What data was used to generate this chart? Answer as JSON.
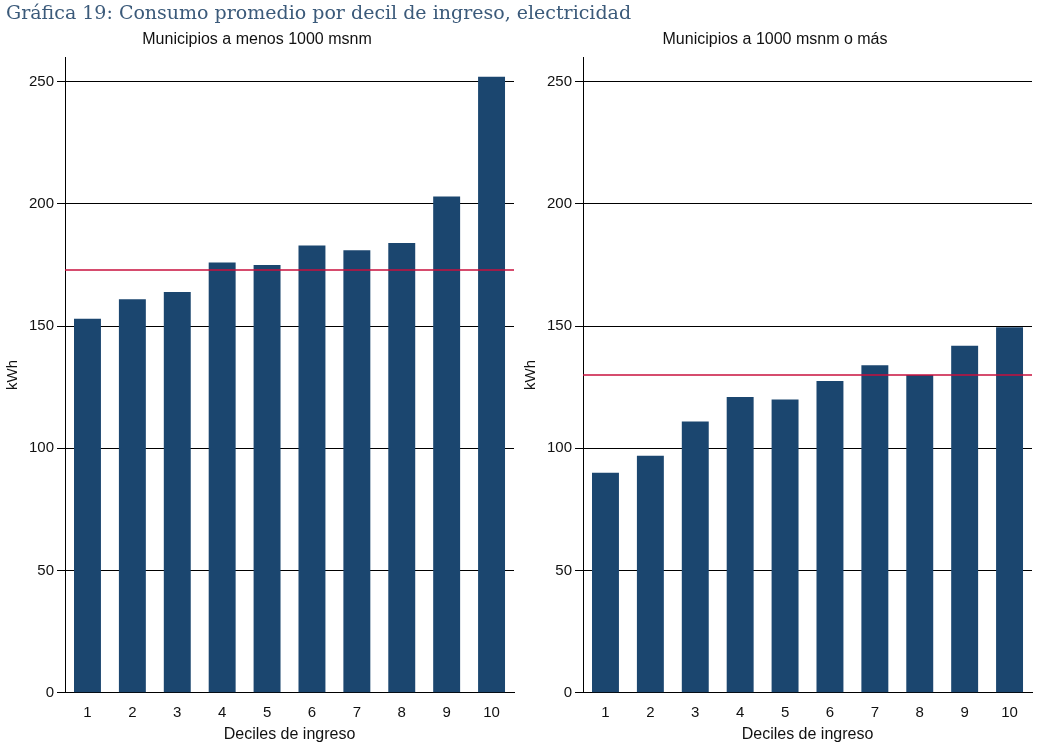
{
  "chart_data": [
    {
      "type": "bar",
      "title": "Municipios a menos 1000 msnm",
      "xlabel": "Deciles de ingreso",
      "ylabel": "kWh",
      "annotations": [
        "Gráfica 19: Consumo promedio por decil de ingreso, electricidad"
      ],
      "categories": [
        "1",
        "2",
        "3",
        "4",
        "5",
        "6",
        "7",
        "8",
        "9",
        "10"
      ],
      "values": [
        153,
        161,
        164,
        176,
        175,
        183,
        181,
        184,
        203,
        252
      ],
      "color": "#1b466f",
      "ylim": [
        0,
        260
      ],
      "yticks": [
        0,
        50,
        100,
        150,
        200,
        250
      ],
      "grid": "y",
      "legend": false,
      "ref_lines": [
        {
          "axis": "y",
          "value": 173,
          "color": "#c8103e"
        }
      ]
    },
    {
      "type": "bar",
      "title": "Municipios a 1000 msnm o más",
      "xlabel": "Deciles de ingreso",
      "ylabel": "kWh",
      "categories": [
        "1",
        "2",
        "3",
        "4",
        "5",
        "6",
        "7",
        "8",
        "9",
        "10"
      ],
      "values": [
        90,
        97,
        111,
        121,
        120,
        127.5,
        134,
        130,
        142,
        149.5
      ],
      "color": "#1b466f",
      "ylim": [
        0,
        260
      ],
      "yticks": [
        0,
        50,
        100,
        150,
        200,
        250
      ],
      "grid": "y",
      "legend": false,
      "ref_lines": [
        {
          "axis": "y",
          "value": 130,
          "color": "#c8103e"
        }
      ]
    }
  ]
}
